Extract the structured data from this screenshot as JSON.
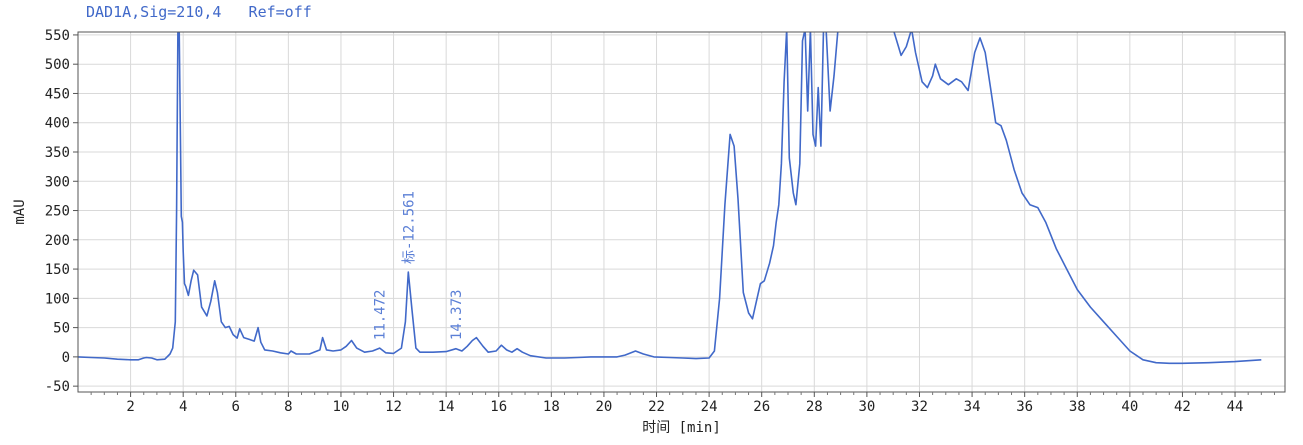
{
  "chart_data": {
    "type": "line",
    "title": "DAD1A,Sig=210,4   Ref=off",
    "xlabel": "时间 [min]",
    "ylabel": "mAU",
    "xlim": [
      0,
      45.9
    ],
    "ylim": [
      -60,
      555
    ],
    "x_ticks": [
      2,
      4,
      6,
      8,
      10,
      12,
      14,
      16,
      18,
      20,
      22,
      24,
      26,
      28,
      30,
      32,
      34,
      36,
      38,
      40,
      42,
      44
    ],
    "y_ticks": [
      -50,
      0,
      50,
      100,
      150,
      200,
      250,
      300,
      350,
      400,
      450,
      500,
      550
    ],
    "grid": true,
    "line_color": "#4169c9",
    "peak_annotations": [
      {
        "x": 11.472,
        "y": 15,
        "label": "11.472"
      },
      {
        "x": 12.561,
        "y": 145,
        "label": "标-12.561"
      },
      {
        "x": 14.373,
        "y": 15,
        "label": "14.373"
      }
    ],
    "series": [
      {
        "points": [
          [
            0.0,
            0
          ],
          [
            0.5,
            -1
          ],
          [
            1.0,
            -2
          ],
          [
            1.5,
            -4
          ],
          [
            2.0,
            -5
          ],
          [
            2.3,
            -5
          ],
          [
            2.5,
            -2
          ],
          [
            2.6,
            -1
          ],
          [
            2.8,
            -2
          ],
          [
            3.0,
            -5
          ],
          [
            3.3,
            -4
          ],
          [
            3.5,
            5
          ],
          [
            3.6,
            15
          ],
          [
            3.7,
            60
          ],
          [
            3.75,
            250
          ],
          [
            3.8,
            560
          ],
          [
            3.85,
            560
          ],
          [
            3.9,
            350
          ],
          [
            3.93,
            240
          ],
          [
            3.97,
            230
          ],
          [
            4.0,
            180
          ],
          [
            4.05,
            125
          ],
          [
            4.1,
            120
          ],
          [
            4.2,
            105
          ],
          [
            4.3,
            130
          ],
          [
            4.4,
            148
          ],
          [
            4.55,
            140
          ],
          [
            4.7,
            85
          ],
          [
            4.9,
            70
          ],
          [
            5.05,
            95
          ],
          [
            5.2,
            130
          ],
          [
            5.3,
            110
          ],
          [
            5.45,
            60
          ],
          [
            5.6,
            50
          ],
          [
            5.75,
            52
          ],
          [
            5.9,
            38
          ],
          [
            6.05,
            32
          ],
          [
            6.15,
            48
          ],
          [
            6.3,
            33
          ],
          [
            6.5,
            30
          ],
          [
            6.7,
            27
          ],
          [
            6.85,
            50
          ],
          [
            6.95,
            25
          ],
          [
            7.1,
            12
          ],
          [
            7.4,
            10
          ],
          [
            7.7,
            7
          ],
          [
            8.0,
            5
          ],
          [
            8.1,
            10
          ],
          [
            8.3,
            5
          ],
          [
            8.8,
            5
          ],
          [
            9.2,
            12
          ],
          [
            9.3,
            33
          ],
          [
            9.45,
            12
          ],
          [
            9.7,
            10
          ],
          [
            10.0,
            12
          ],
          [
            10.2,
            18
          ],
          [
            10.4,
            28
          ],
          [
            10.6,
            15
          ],
          [
            10.9,
            8
          ],
          [
            11.2,
            10
          ],
          [
            11.472,
            15
          ],
          [
            11.7,
            7
          ],
          [
            12.0,
            6
          ],
          [
            12.3,
            15
          ],
          [
            12.45,
            60
          ],
          [
            12.561,
            145
          ],
          [
            12.7,
            80
          ],
          [
            12.85,
            15
          ],
          [
            13.0,
            8
          ],
          [
            13.5,
            8
          ],
          [
            14.0,
            9
          ],
          [
            14.373,
            14
          ],
          [
            14.6,
            10
          ],
          [
            14.8,
            18
          ],
          [
            15.0,
            28
          ],
          [
            15.15,
            33
          ],
          [
            15.4,
            18
          ],
          [
            15.6,
            8
          ],
          [
            15.9,
            10
          ],
          [
            16.1,
            20
          ],
          [
            16.3,
            12
          ],
          [
            16.5,
            8
          ],
          [
            16.7,
            14
          ],
          [
            16.9,
            8
          ],
          [
            17.2,
            2
          ],
          [
            17.8,
            -2
          ],
          [
            18.5,
            -2
          ],
          [
            19.0,
            -1
          ],
          [
            19.5,
            0
          ],
          [
            20.0,
            0
          ],
          [
            20.5,
            0
          ],
          [
            20.8,
            3
          ],
          [
            21.2,
            10
          ],
          [
            21.5,
            5
          ],
          [
            21.9,
            0
          ],
          [
            22.5,
            -1
          ],
          [
            23.0,
            -2
          ],
          [
            23.5,
            -3
          ],
          [
            24.0,
            -2
          ],
          [
            24.2,
            10
          ],
          [
            24.4,
            100
          ],
          [
            24.6,
            260
          ],
          [
            24.8,
            380
          ],
          [
            24.95,
            360
          ],
          [
            25.1,
            270
          ],
          [
            25.3,
            110
          ],
          [
            25.5,
            75
          ],
          [
            25.65,
            65
          ],
          [
            25.8,
            95
          ],
          [
            25.95,
            125
          ],
          [
            26.1,
            130
          ],
          [
            26.3,
            160
          ],
          [
            26.45,
            190
          ],
          [
            26.55,
            230
          ],
          [
            26.65,
            260
          ],
          [
            26.75,
            330
          ],
          [
            26.85,
            470
          ],
          [
            26.95,
            560
          ],
          [
            27.05,
            340
          ],
          [
            27.2,
            280
          ],
          [
            27.3,
            260
          ],
          [
            27.45,
            330
          ],
          [
            27.55,
            540
          ],
          [
            27.65,
            560
          ],
          [
            27.75,
            420
          ],
          [
            27.85,
            560
          ],
          [
            27.95,
            380
          ],
          [
            28.05,
            360
          ],
          [
            28.15,
            460
          ],
          [
            28.25,
            360
          ],
          [
            28.35,
            560
          ],
          [
            28.45,
            560
          ],
          [
            28.6,
            420
          ],
          [
            28.75,
            480
          ],
          [
            28.9,
            560
          ],
          [
            29.1,
            560
          ],
          [
            30.0,
            560
          ],
          [
            31.0,
            560
          ],
          [
            31.3,
            515
          ],
          [
            31.5,
            530
          ],
          [
            31.7,
            560
          ],
          [
            31.85,
            520
          ],
          [
            32.1,
            470
          ],
          [
            32.3,
            460
          ],
          [
            32.5,
            480
          ],
          [
            32.6,
            500
          ],
          [
            32.8,
            475
          ],
          [
            33.1,
            465
          ],
          [
            33.4,
            475
          ],
          [
            33.6,
            470
          ],
          [
            33.85,
            455
          ],
          [
            34.1,
            520
          ],
          [
            34.3,
            545
          ],
          [
            34.5,
            520
          ],
          [
            34.7,
            460
          ],
          [
            34.9,
            400
          ],
          [
            35.1,
            395
          ],
          [
            35.3,
            370
          ],
          [
            35.6,
            320
          ],
          [
            35.9,
            280
          ],
          [
            36.2,
            260
          ],
          [
            36.5,
            255
          ],
          [
            36.8,
            230
          ],
          [
            37.2,
            185
          ],
          [
            37.6,
            150
          ],
          [
            38.0,
            115
          ],
          [
            38.5,
            85
          ],
          [
            39.0,
            60
          ],
          [
            39.5,
            35
          ],
          [
            40.0,
            10
          ],
          [
            40.5,
            -5
          ],
          [
            41.0,
            -10
          ],
          [
            41.5,
            -11
          ],
          [
            42.0,
            -11
          ],
          [
            43.0,
            -10
          ],
          [
            44.0,
            -8
          ],
          [
            45.0,
            -5
          ]
        ]
      }
    ]
  }
}
